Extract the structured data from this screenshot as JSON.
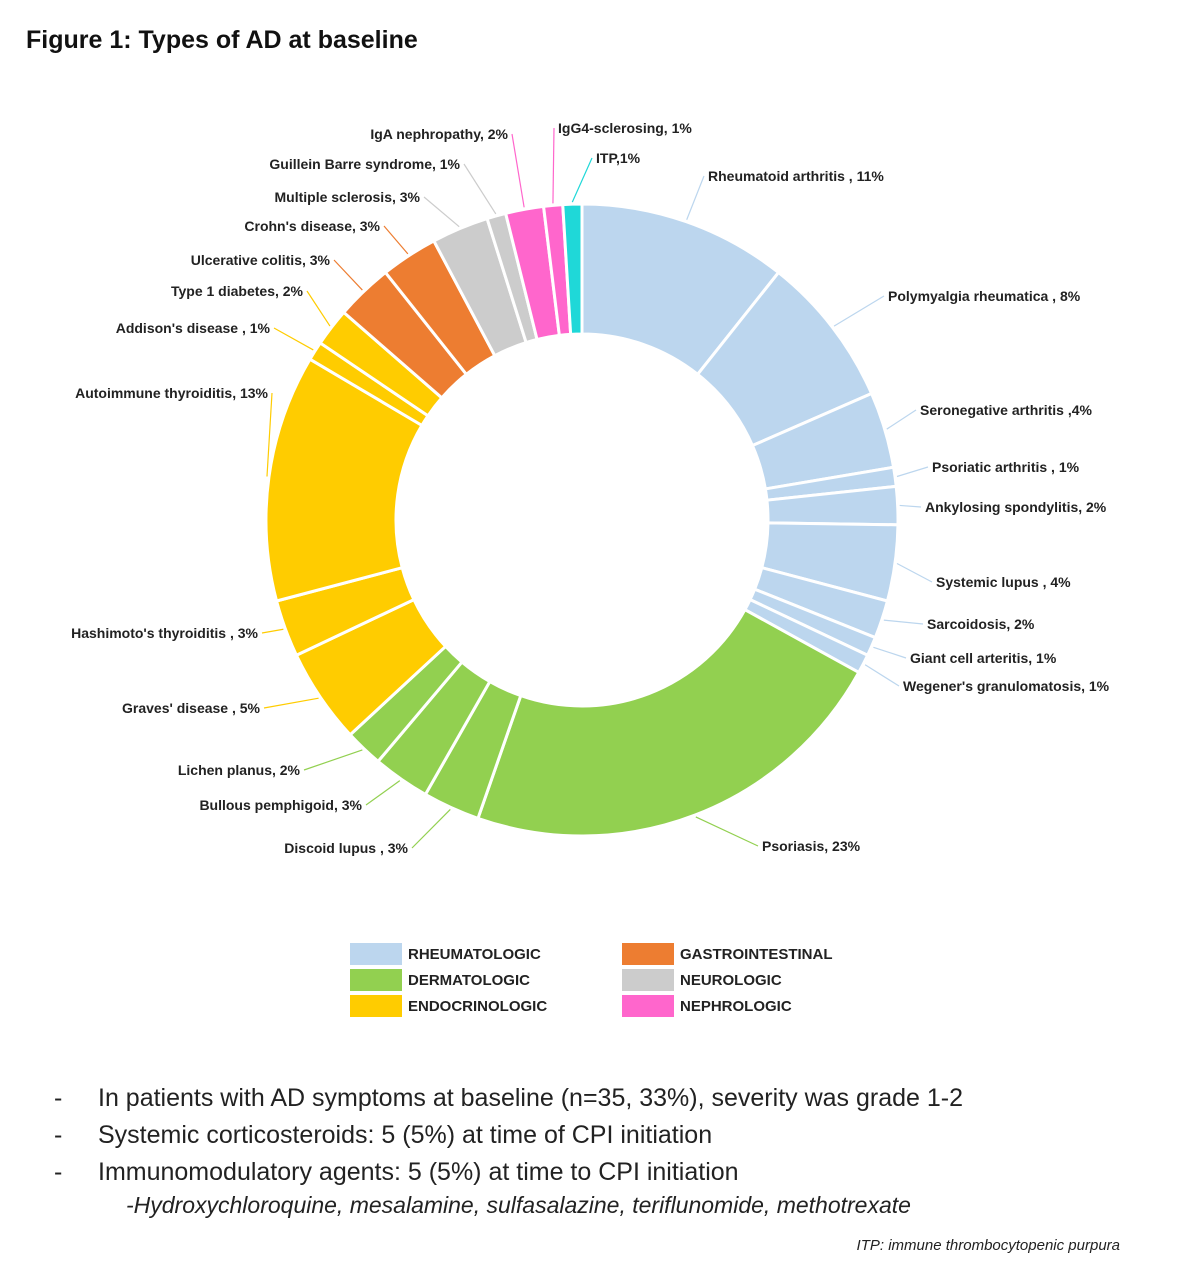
{
  "title": "Figure 1: Types of AD at baseline",
  "colors": {
    "RHEUMATOLOGIC": "#bcd6ee",
    "DERMATOLOGIC": "#92d050",
    "ENDOCRINOLOGIC": "#ffcc00",
    "GASTROINTESTINAL": "#ed7d31",
    "NEUROLOGIC": "#cccccc",
    "NEPHROLOGIC": "#ff66cc",
    "HEMATOLOGIC": "#1fd8d8"
  },
  "chart_data": {
    "type": "pie",
    "variant": "donut",
    "categories": [
      "Rheumatoid arthritis",
      "Polymyalgia rheumatica",
      "Seronegative arthritis",
      "Psoriatic arthritis",
      "Ankylosing spondylitis",
      "Systemic lupus",
      "Sarcoidosis",
      "Giant cell arteritis",
      "Wegener's granulomatosis",
      "Psoriasis",
      "Discoid lupus",
      "Bullous pemphigoid",
      "Lichen planus",
      "Graves' disease",
      "Hashimoto's thyroiditis",
      "Autoimmune thyroiditis",
      "Addison's disease",
      "Type 1 diabetes",
      "Ulcerative colitis",
      "Crohn's disease",
      "Multiple sclerosis",
      "Guillein Barre syndrome",
      "IgA nephropathy",
      "IgG4-sclerosing",
      "ITP"
    ],
    "values": [
      11,
      8,
      4,
      1,
      2,
      4,
      2,
      1,
      1,
      23,
      3,
      3,
      2,
      5,
      3,
      13,
      1,
      2,
      3,
      3,
      3,
      1,
      2,
      1,
      1
    ],
    "units": "%",
    "slices": [
      {
        "label": "Rheumatoid arthritis , 11%",
        "group": "RHEUMATOLOGIC"
      },
      {
        "label": "Polymyalgia rheumatica , 8%",
        "group": "RHEUMATOLOGIC"
      },
      {
        "label": "Seronegative arthritis ,4%",
        "group": "RHEUMATOLOGIC"
      },
      {
        "label": "Psoriatic arthritis ,  1%",
        "group": "RHEUMATOLOGIC"
      },
      {
        "label": "Ankylosing spondylitis, 2%",
        "group": "RHEUMATOLOGIC"
      },
      {
        "label": "Systemic lupus , 4%",
        "group": "RHEUMATOLOGIC"
      },
      {
        "label": "Sarcoidosis, 2%",
        "group": "RHEUMATOLOGIC"
      },
      {
        "label": "Giant cell arteritis, 1%",
        "group": "RHEUMATOLOGIC"
      },
      {
        "label": "Wegener's granulomatosis, 1%",
        "group": "RHEUMATOLOGIC"
      },
      {
        "label": "Psoriasis, 23%",
        "group": "DERMATOLOGIC"
      },
      {
        "label": "Discoid lupus , 3%",
        "group": "DERMATOLOGIC"
      },
      {
        "label": "Bullous pemphigoid, 3%",
        "group": "DERMATOLOGIC"
      },
      {
        "label": "Lichen planus, 2%",
        "group": "DERMATOLOGIC"
      },
      {
        "label": "Graves' disease , 5%",
        "group": "ENDOCRINOLOGIC"
      },
      {
        "label": "Hashimoto's thyroiditis , 3%",
        "group": "ENDOCRINOLOGIC"
      },
      {
        "label": "Autoimmune thyroiditis, 13%",
        "group": "ENDOCRINOLOGIC"
      },
      {
        "label": "Addison's disease , 1%",
        "group": "ENDOCRINOLOGIC"
      },
      {
        "label": "Type 1 diabetes, 2%",
        "group": "ENDOCRINOLOGIC"
      },
      {
        "label": "Ulcerative colitis, 3%",
        "group": "GASTROINTESTINAL"
      },
      {
        "label": "Crohn's disease, 3%",
        "group": "GASTROINTESTINAL"
      },
      {
        "label": "Multiple sclerosis, 3%",
        "group": "NEUROLOGIC"
      },
      {
        "label": "Guillein Barre syndrome, 1%",
        "group": "NEUROLOGIC"
      },
      {
        "label": "IgA nephropathy, 2%",
        "group": "NEPHROLOGIC"
      },
      {
        "label": "IgG4-sclerosing, 1%",
        "group": "NEPHROLOGIC"
      },
      {
        "label": "ITP,1%",
        "group": "HEMATOLOGIC"
      }
    ],
    "legend": [
      "RHEUMATOLOGIC",
      "GASTROINTESTINAL",
      "DERMATOLOGIC",
      "NEUROLOGIC",
      "ENDOCRINOLOGIC",
      "NEPHROLOGIC"
    ],
    "legend_position": "bottom"
  },
  "notes": {
    "bullets": [
      "In patients with AD symptoms at baseline (n=35, 33%), severity was grade 1-2",
      "Systemic corticosteroids: 5 (5%) at time of CPI initiation",
      "Immunomodulatory agents: 5 (5%) at time to CPI initiation"
    ],
    "sub": "-Hydroxychloroquine, mesalamine, sulfasalazine, teriflunomide, methotrexate",
    "footnote": "ITP: immune thrombocytopenic purpura"
  }
}
